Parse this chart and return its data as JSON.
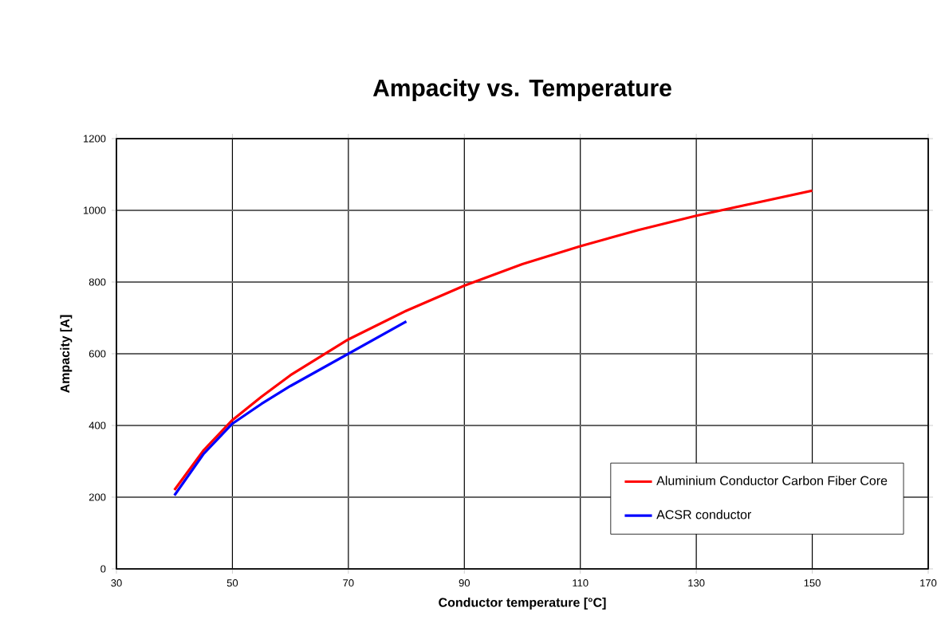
{
  "chart_data": {
    "type": "line",
    "title": "Ampacity vs. Temperature",
    "xlabel": "Conductor temperature [°C]",
    "ylabel": "Ampacity [A]",
    "xlim": [
      30,
      170
    ],
    "xticks": [
      30,
      50,
      70,
      90,
      110,
      130,
      150,
      170
    ],
    "ylim": [
      0,
      1200
    ],
    "yticks": [
      0,
      200,
      400,
      600,
      800,
      1000,
      1200
    ],
    "grid": true,
    "legend": "bottom right",
    "marker": "none",
    "line_style": "solid",
    "series": [
      {
        "name": "Aluminium Conductor Carbon Fiber Core",
        "color": "#ff0000",
        "x": [
          40,
          45,
          50,
          55,
          60,
          70,
          80,
          90,
          100,
          110,
          120,
          130,
          140,
          150
        ],
        "values": [
          220,
          330,
          415,
          480,
          540,
          640,
          720,
          790,
          850,
          900,
          945,
          985,
          1020,
          1055
        ]
      },
      {
        "name": "ACSR conductor",
        "color": "#0000ff",
        "x": [
          40,
          45,
          50,
          55,
          60,
          70,
          80
        ],
        "values": [
          205,
          320,
          405,
          460,
          510,
          600,
          690
        ]
      }
    ]
  }
}
